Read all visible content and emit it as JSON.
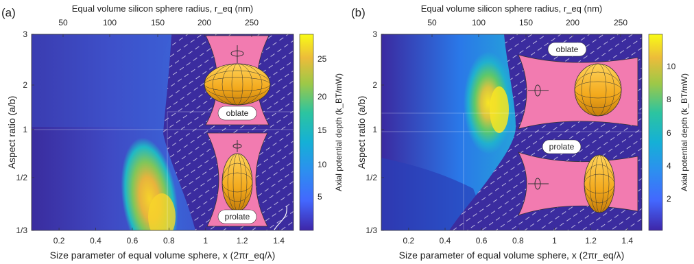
{
  "chart_data": [
    {
      "type": "heatmap",
      "panel_label": "(a)",
      "top_axis_label": "Equal volume silicon sphere radius, r_eq (nm)",
      "top_ticks": [
        "50",
        "100",
        "150",
        "200",
        "250"
      ],
      "xlabel": "Size parameter of equal volume sphere, x (2πr_eq/λ)",
      "xticks": [
        "0.2",
        "0.4",
        "0.6",
        "0.8",
        "1",
        "1.2",
        "1.4"
      ],
      "ylabel": "Aspect ratio (a/b)",
      "yticks": [
        "3",
        "2",
        "1",
        "1/2",
        "1/3"
      ],
      "colorbar_label": "Axial potential depth (k_BT/mW)",
      "colorbar_ticks": [
        "25",
        "20",
        "15",
        "10",
        "5"
      ],
      "colorbar_range": [
        0,
        28
      ],
      "xlim": [
        0.05,
        1.48
      ],
      "insets": [
        "oblate",
        "prolate"
      ]
    },
    {
      "type": "heatmap",
      "panel_label": "(b)",
      "top_axis_label": "Equal volume silicon sphere radius, r_eq (nm)",
      "top_ticks": [
        "50",
        "100",
        "150",
        "200",
        "250"
      ],
      "xlabel": "Size parameter of equal volume sphere, x (2πr_eq/λ)",
      "xticks": [
        "0.2",
        "0.4",
        "0.6",
        "0.8",
        "1",
        "1.2",
        "1.4"
      ],
      "ylabel": "Aspect ratio (a/b)",
      "yticks": [
        "3",
        "2",
        "1",
        "1/2",
        "1/3"
      ],
      "colorbar_label": "Axial potential depth (k_BT/mW)",
      "colorbar_ticks": [
        "10",
        "8",
        "6",
        "4",
        "2"
      ],
      "colorbar_range": [
        0,
        11.8
      ],
      "xlim": [
        0.05,
        1.48
      ],
      "insets": [
        "oblate",
        "prolate"
      ]
    }
  ]
}
